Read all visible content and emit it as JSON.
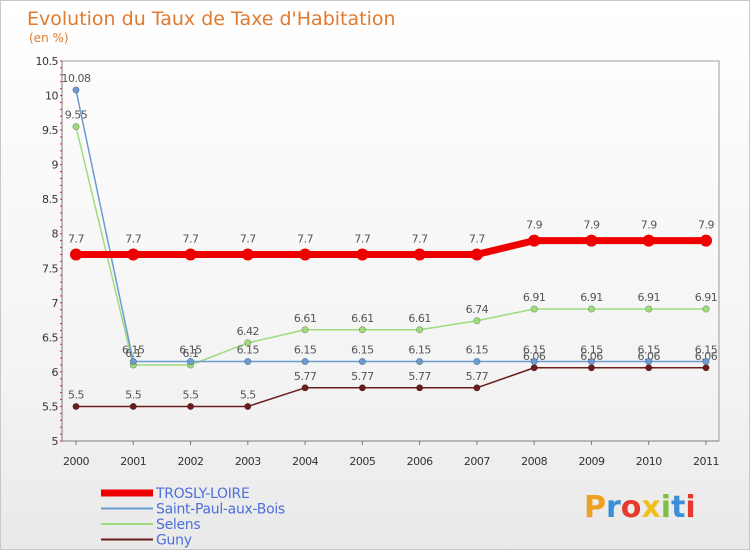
{
  "chart_data": {
    "type": "line",
    "title": "Evolution du Taux de Taxe d'Habitation",
    "subtitle": "(en %)",
    "categories": [
      "2000",
      "2001",
      "2002",
      "2003",
      "2004",
      "2005",
      "2006",
      "2007",
      "2008",
      "2009",
      "2010",
      "2011"
    ],
    "y_ticks": [
      "5",
      "5.5",
      "6",
      "6.5",
      "7",
      "7.5",
      "8",
      "8.5",
      "9",
      "9.5",
      "10",
      "10.5"
    ],
    "ylim": [
      5,
      10.5
    ],
    "series": [
      {
        "name": "TROSLY-LOIRE",
        "color": "#ee0000",
        "values": [
          7.7,
          7.7,
          7.7,
          7.7,
          7.7,
          7.7,
          7.7,
          7.7,
          7.9,
          7.9,
          7.9,
          7.9
        ],
        "labels": [
          "7.7",
          "7.7",
          "7.7",
          "7.7",
          "7.7",
          "7.7",
          "7.7",
          "7.7",
          "7.9",
          "7.9",
          "7.9",
          "7.9"
        ]
      },
      {
        "name": "Saint-Paul-aux-Bois",
        "color": "#6b9bd1",
        "values": [
          10.08,
          6.15,
          6.15,
          6.15,
          6.15,
          6.15,
          6.15,
          6.15,
          6.15,
          6.15,
          6.15,
          6.15
        ],
        "labels": [
          "10.08",
          "6.15",
          "6.15",
          "6.15",
          "6.15",
          "6.15",
          "6.15",
          "6.15",
          "6.15",
          "6.15",
          "6.15",
          "6.15"
        ]
      },
      {
        "name": "Selens",
        "color": "#9edc7c",
        "values": [
          9.55,
          6.1,
          6.1,
          6.42,
          6.61,
          6.61,
          6.61,
          6.74,
          6.91,
          6.91,
          6.91,
          6.91
        ],
        "labels": [
          "9.55",
          "6.1",
          "6.1",
          "6.42",
          "6.61",
          "6.61",
          "6.61",
          "6.74",
          "6.91",
          "6.91",
          "6.91",
          "6.91"
        ]
      },
      {
        "name": "Guny",
        "color": "#6b1c1c",
        "values": [
          5.5,
          5.5,
          5.5,
          5.5,
          5.77,
          5.77,
          5.77,
          5.77,
          6.06,
          6.06,
          6.06,
          6.06
        ],
        "labels": [
          "5.5",
          "5.5",
          "5.5",
          "5.5",
          "5.77",
          "5.77",
          "5.77",
          "5.77",
          "6.06",
          "6.06",
          "6.06",
          "6.06"
        ]
      }
    ]
  },
  "logo": {
    "letters": [
      "P",
      "r",
      "o",
      "x",
      "i",
      "t",
      "i"
    ],
    "colors": [
      "#f0a020",
      "#3a8fd8",
      "#e63a2e",
      "#f0c020",
      "#7cc040",
      "#3a8fd8",
      "#e63a2e"
    ]
  }
}
